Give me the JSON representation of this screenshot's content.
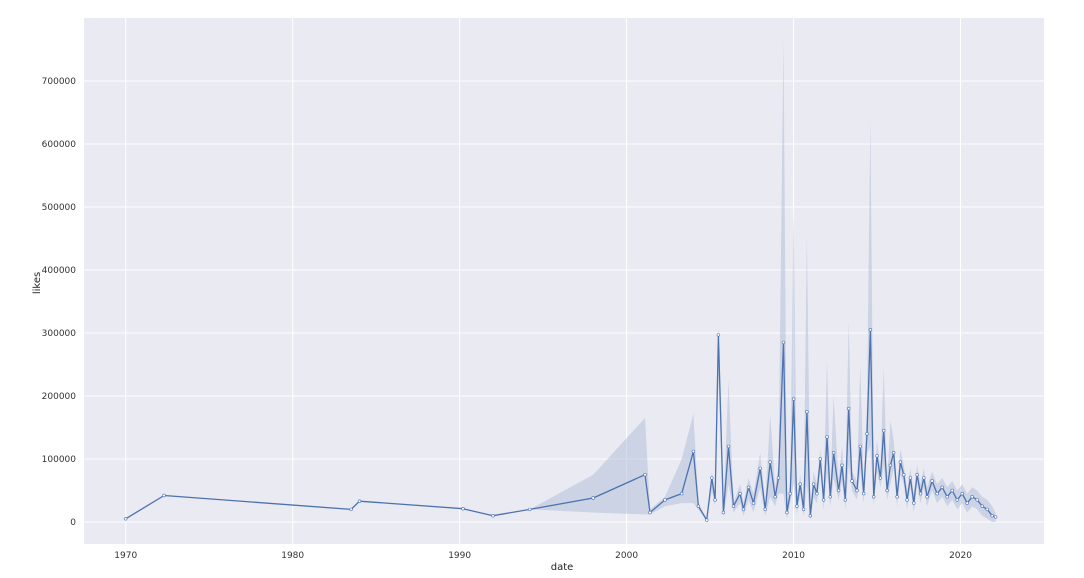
{
  "chart_data": {
    "type": "line",
    "xlabel": "date",
    "ylabel": "likes",
    "xlim": [
      1967.5,
      2025
    ],
    "ylim": [
      -35000,
      800000
    ],
    "x_ticks": [
      1970,
      1980,
      1990,
      2000,
      2010,
      2020
    ],
    "x_tick_labels": [
      "1970",
      "1980",
      "1990",
      "2000",
      "2010",
      "2020"
    ],
    "y_ticks": [
      0,
      100000,
      200000,
      300000,
      400000,
      500000,
      600000,
      700000
    ],
    "y_tick_labels": [
      "0",
      "100000",
      "200000",
      "300000",
      "400000",
      "500000",
      "600000",
      "700000"
    ],
    "grid": true,
    "background_color": "#eaeaf2",
    "line_color": "#4c72b0",
    "band_color": "#b3bfd9",
    "series": [
      {
        "x": [
          1970.0,
          1972.3,
          1983.5,
          1984.0,
          1990.2,
          1992.0,
          1994.2,
          1998.0,
          2001.1,
          2001.4,
          2002.3,
          2003.3,
          2004.0,
          2004.3,
          2004.8,
          2005.1,
          2005.3,
          2005.5,
          2005.8,
          2006.1,
          2006.4,
          2006.8,
          2007.0,
          2007.3,
          2007.6,
          2008.0,
          2008.3,
          2008.6,
          2008.9,
          2009.1,
          2009.4,
          2009.6,
          2009.8,
          2010.0,
          2010.2,
          2010.4,
          2010.6,
          2010.8,
          2011.0,
          2011.2,
          2011.4,
          2011.6,
          2011.8,
          2012.0,
          2012.2,
          2012.4,
          2012.7,
          2012.9,
          2013.1,
          2013.3,
          2013.5,
          2013.8,
          2014.0,
          2014.2,
          2014.4,
          2014.6,
          2014.8,
          2015.0,
          2015.2,
          2015.4,
          2015.6,
          2015.8,
          2016.0,
          2016.2,
          2016.4,
          2016.6,
          2016.8,
          2017.0,
          2017.2,
          2017.4,
          2017.6,
          2017.8,
          2018.0,
          2018.3,
          2018.6,
          2018.9,
          2019.2,
          2019.5,
          2019.8,
          2020.1,
          2020.4,
          2020.7,
          2021.0,
          2021.3,
          2021.6,
          2021.9,
          2022.1
        ],
        "values": [
          5000,
          42000,
          20000,
          33000,
          21000,
          10000,
          20000,
          38000,
          75000,
          15000,
          35000,
          45000,
          112000,
          25000,
          3000,
          70000,
          35000,
          297000,
          15000,
          120000,
          25000,
          45000,
          20000,
          55000,
          30000,
          85000,
          20000,
          95000,
          40000,
          70000,
          285000,
          15000,
          45000,
          195000,
          25000,
          60000,
          20000,
          175000,
          10000,
          60000,
          45000,
          100000,
          35000,
          135000,
          40000,
          110000,
          50000,
          90000,
          35000,
          180000,
          65000,
          50000,
          120000,
          45000,
          140000,
          305000,
          40000,
          105000,
          70000,
          145000,
          50000,
          90000,
          110000,
          40000,
          95000,
          75000,
          35000,
          70000,
          30000,
          75000,
          45000,
          70000,
          40000,
          65000,
          45000,
          55000,
          40000,
          50000,
          35000,
          45000,
          30000,
          40000,
          35000,
          25000,
          20000,
          10000,
          8000
        ],
        "upper": [
          5000,
          42000,
          20000,
          33000,
          21000,
          10000,
          20000,
          75000,
          165000,
          20000,
          40000,
          100000,
          172000,
          30000,
          5000,
          80000,
          45000,
          310000,
          25000,
          225000,
          30000,
          60000,
          30000,
          70000,
          45000,
          110000,
          30000,
          170000,
          55000,
          90000,
          765000,
          30000,
          60000,
          500000,
          35000,
          75000,
          30000,
          455000,
          20000,
          80000,
          60000,
          115000,
          50000,
          255000,
          55000,
          200000,
          65000,
          120000,
          50000,
          320000,
          80000,
          65000,
          250000,
          60000,
          190000,
          640000,
          55000,
          130000,
          85000,
          245000,
          65000,
          160000,
          130000,
          55000,
          115000,
          90000,
          50000,
          85000,
          45000,
          90000,
          60000,
          85000,
          55000,
          80000,
          60000,
          70000,
          55000,
          65000,
          50000,
          60000,
          45000,
          55000,
          50000,
          40000,
          35000,
          25000,
          15000
        ],
        "lower": [
          5000,
          42000,
          20000,
          33000,
          21000,
          10000,
          20000,
          15000,
          12000,
          12000,
          25000,
          30000,
          30000,
          20000,
          1000,
          50000,
          25000,
          230000,
          8000,
          60000,
          15000,
          30000,
          10000,
          35000,
          15000,
          55000,
          10000,
          40000,
          25000,
          45000,
          45000,
          5000,
          30000,
          60000,
          12000,
          45000,
          10000,
          60000,
          3000,
          40000,
          30000,
          80000,
          20000,
          80000,
          25000,
          70000,
          35000,
          65000,
          20000,
          90000,
          50000,
          35000,
          80000,
          30000,
          110000,
          120000,
          25000,
          80000,
          55000,
          90000,
          35000,
          60000,
          85000,
          25000,
          75000,
          60000,
          20000,
          55000,
          15000,
          60000,
          30000,
          55000,
          25000,
          50000,
          30000,
          40000,
          25000,
          35000,
          20000,
          30000,
          15000,
          25000,
          20000,
          10000,
          5000,
          0,
          0
        ]
      }
    ]
  }
}
